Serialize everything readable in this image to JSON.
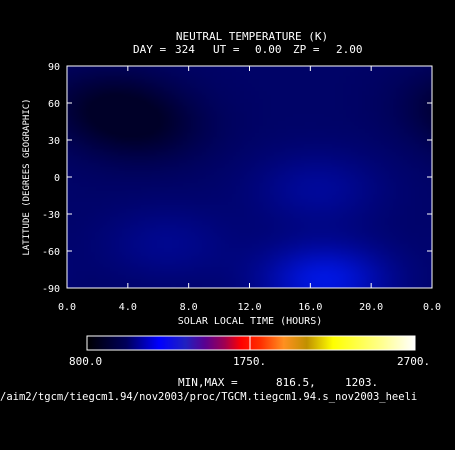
{
  "chart_data": {
    "type": "heatmap",
    "title": "NEUTRAL TEMPERATURE (K)",
    "subtitle": {
      "day_label": "DAY =",
      "day": "324",
      "ut_label": "UT =",
      "ut": "0.00",
      "zp_label": "ZP =",
      "zp": "2.00"
    },
    "xlabel": "SOLAR LOCAL TIME (HOURS)",
    "ylabel": "LATITUDE (DEGREES GEOGRAPHIC)",
    "xlim": [
      0,
      24
    ],
    "ylim": [
      -90,
      90
    ],
    "x_ticks": [
      "0.0",
      "4.0",
      "8.0",
      "12.0",
      "16.0",
      "20.0",
      "0.0"
    ],
    "y_ticks": [
      "90",
      "60",
      "30",
      "0",
      "-30",
      "-60",
      "-90"
    ],
    "colorbar": {
      "min_label": "800.0",
      "mid_label": "1750.",
      "max_label": "2700.",
      "range": [
        800,
        2700
      ]
    },
    "minmax": {
      "label": "MIN,MAX =",
      "min": "816.5,",
      "max": "1203."
    },
    "field_min": 816.5,
    "field_max": 1203,
    "features": [
      {
        "slt": 2.5,
        "lat": 60,
        "value": 840
      },
      {
        "slt": 5.0,
        "lat": 40,
        "value": 845
      },
      {
        "slt": 16.5,
        "lat": -10,
        "value": 1020
      },
      {
        "slt": 17.0,
        "lat": -85,
        "value": 1150
      },
      {
        "slt": 6.5,
        "lat": -55,
        "value": 1000
      }
    ]
  },
  "path_text": "/aim2/tgcm/tiegcm1.94/nov2003/proc/TGCM.tiegcm1.94.s_nov2003_heeli",
  "colors": {
    "background": "#000000",
    "foreground": "#ffffff",
    "cold": "#000030",
    "warm": "#0030ff"
  }
}
